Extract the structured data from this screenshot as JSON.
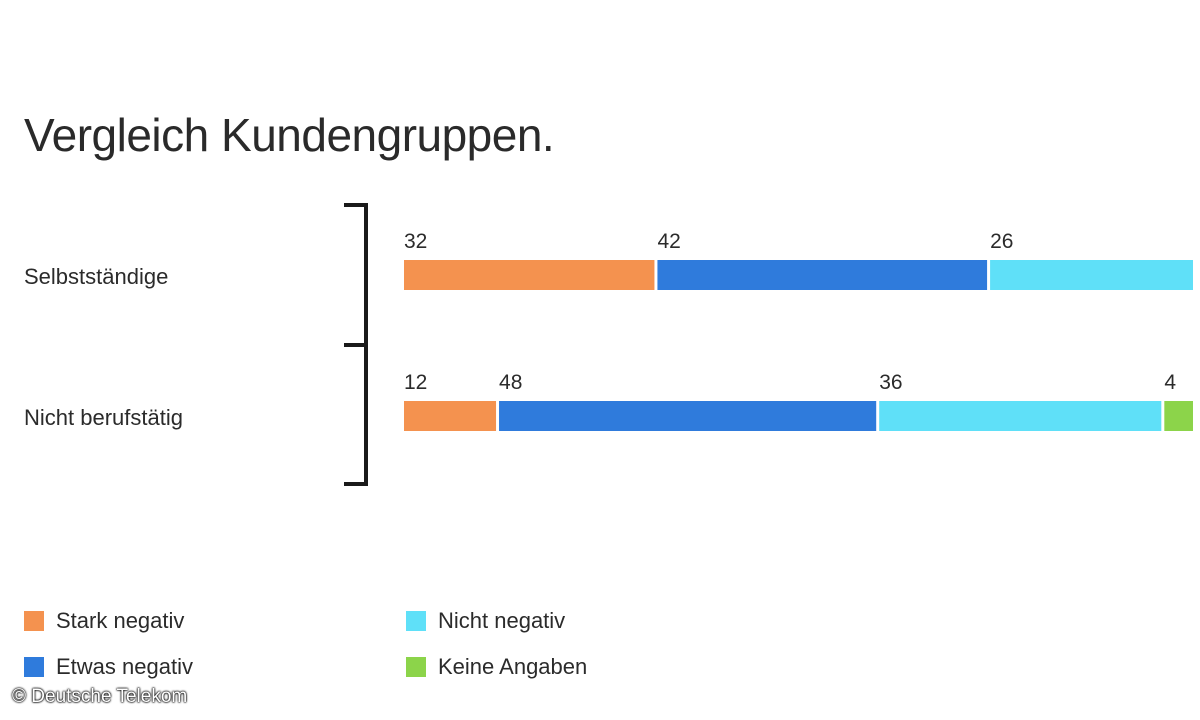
{
  "chart_data": {
    "type": "bar",
    "orientation": "horizontal",
    "stacked": true,
    "title": "Vergleich Kundengruppen.",
    "categories": [
      "Selbstständige",
      "Nicht berufstätig"
    ],
    "series": [
      {
        "name": "Stark negativ",
        "color": "#F4924F",
        "values": [
          32,
          12
        ]
      },
      {
        "name": "Etwas negativ",
        "color": "#2F7BDC",
        "values": [
          42,
          48
        ]
      },
      {
        "name": "Nicht negativ",
        "color": "#5FE0F8",
        "values": [
          26,
          36
        ]
      },
      {
        "name": "Keine Angaben",
        "color": "#8CD44A",
        "values": [
          0,
          4
        ]
      }
    ],
    "xlim": [
      0,
      100
    ],
    "grid": false,
    "legend": "bottom"
  },
  "copyright": "© Deutsche Telekom"
}
